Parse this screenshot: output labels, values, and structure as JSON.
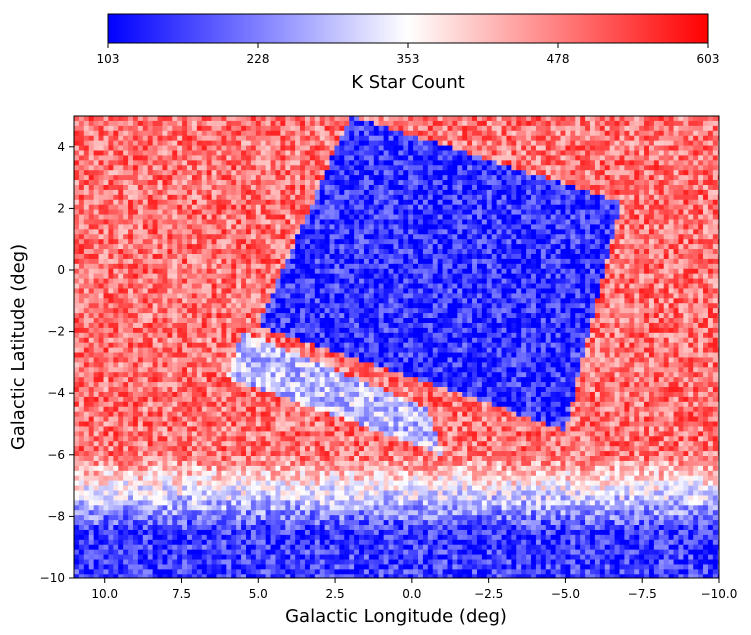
{
  "chart_data": {
    "type": "heatmap",
    "title": "",
    "xlabel": "Galactic Longitude (deg)",
    "ylabel": "Galactic Latitude (deg)",
    "xlim": [
      11.0,
      -10.0
    ],
    "ylim": [
      -10,
      5
    ],
    "x_ticks": [
      "10.0",
      "7.5",
      "5.0",
      "2.5",
      "0.0",
      "−2.5",
      "−5.0",
      "−7.5",
      "−10.0"
    ],
    "x_tick_values": [
      10.0,
      7.5,
      5.0,
      2.5,
      0.0,
      -2.5,
      -5.0,
      -7.5,
      -10.0
    ],
    "y_ticks": [
      "4",
      "2",
      "0",
      "−2",
      "−4",
      "−6",
      "−8",
      "−10"
    ],
    "y_tick_values": [
      4,
      2,
      0,
      -2,
      -4,
      -6,
      -8,
      -10
    ],
    "colorbar": {
      "label": "K Star Count",
      "min": 103,
      "max": 603,
      "ticks": [
        "103",
        "228",
        "353",
        "478",
        "603"
      ],
      "tick_values": [
        103,
        228,
        353,
        478,
        603
      ],
      "colormap": "bwr",
      "colors": {
        "low": "#0000ff",
        "mid": "#ffffff",
        "high": "#ff0000"
      },
      "placement": "top"
    },
    "regions": [
      {
        "label": "inner survey tile (low counts)",
        "corners_lb": [
          [
            2.0,
            5.0
          ],
          [
            -6.8,
            2.2
          ],
          [
            -5.0,
            -5.2
          ],
          [
            5.0,
            -1.8
          ]
        ],
        "typical_count": 150
      },
      {
        "label": "inner tile extension",
        "corners_lb": [
          [
            5.5,
            -2.0
          ],
          [
            -0.5,
            -4.5
          ],
          [
            -1.0,
            -6.0
          ],
          [
            6.0,
            -3.5
          ]
        ],
        "typical_count": 290
      },
      {
        "label": "lower bulge band",
        "corners_lb": [
          [
            11.0,
            -6.0
          ],
          [
            -10.0,
            -6.0
          ],
          [
            -10.0,
            -10.0
          ],
          [
            11.0,
            -10.0
          ]
        ],
        "typical_count": 160
      }
    ],
    "background_count": 490,
    "grid": false,
    "legend": "none"
  }
}
